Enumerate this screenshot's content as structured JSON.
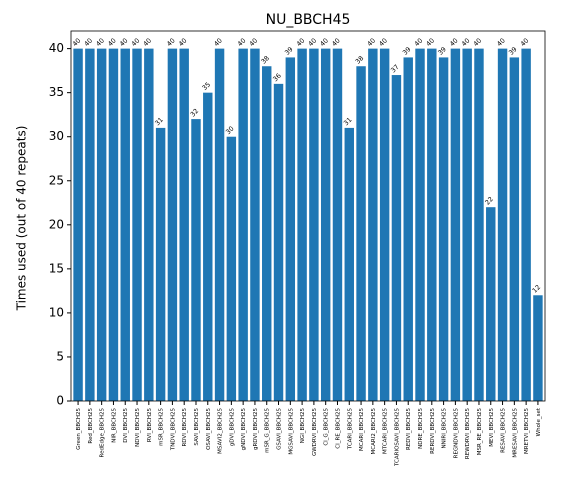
{
  "chart_data": {
    "type": "bar",
    "title": "NU_BBCH45",
    "ylabel": "Times used (out of 40 repeats)",
    "categories": [
      "Green_BBCH25",
      "Red_BBCH25",
      "RedEdge_BBCH25",
      "NIR_BBCH25",
      "DVI_BBCH25",
      "NDVI_BBCH25",
      "RVI_BBCH25",
      "mSR_BBCH25",
      "TNDVI_BBCH25",
      "RDVI_BBCH25",
      "SAVI_BBCH25",
      "OSAVI_BBCH25",
      "MSAVI2_BBCH25",
      "gDVI_BBCH25",
      "gNDVI_BBCH25",
      "gRDVI_BBCH25",
      "mSR_G_BBCH25",
      "GSAVI_BBCH25",
      "MGSAVI_BBCH25",
      "NGI_BBCH25",
      "GWDRVI_BBCH25",
      "CI_G_BBCH25",
      "CI_RE_BBCH25",
      "TCARI_BBCH25",
      "MCARI_BBCH25",
      "MCARI2_BBCH25",
      "MTCARI_BBCH25",
      "TCARIOSAVI_BBCH25",
      "REDVI_BBCH25",
      "NDRE_BBCH25",
      "RERDVI_BBCH25",
      "NNIRI_BBCH25",
      "REGNDVI_BBCH25",
      "REWDRVI_BBCH25",
      "MSR_RE_BBCH25",
      "MEVI_BBCH25",
      "RESAVI_BBCH25",
      "MRESAVI_BBCH25",
      "MRETVI_BBCH25",
      "Whole_set"
    ],
    "values": [
      40,
      40,
      40,
      40,
      40,
      40,
      40,
      31,
      40,
      40,
      32,
      35,
      40,
      30,
      40,
      40,
      38,
      36,
      39,
      40,
      40,
      40,
      40,
      31,
      38,
      40,
      40,
      37,
      39,
      40,
      40,
      39,
      40,
      40,
      40,
      22,
      40,
      39,
      40,
      12
    ],
    "color": "#1f77b4",
    "ylim": [
      0,
      42
    ],
    "yticks": [
      0,
      5,
      10,
      15,
      20,
      25,
      30,
      35,
      40
    ],
    "grid": false
  }
}
